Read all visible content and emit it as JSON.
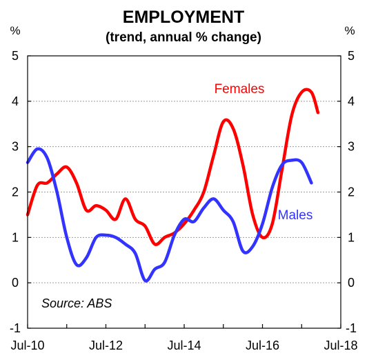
{
  "chart_data": {
    "type": "line",
    "title": "EMPLOYMENT",
    "subtitle": "(trend, annual % change)",
    "y_unit_left": "%",
    "y_unit_right": "%",
    "ylim": [
      -1,
      5
    ],
    "yticks": [
      "5",
      "4",
      "3",
      "2",
      "1",
      "0",
      "-1"
    ],
    "xlim": [
      "2010-07",
      "2018-07"
    ],
    "xticks": [
      {
        "label": "Jul-10",
        "date": "2010-07"
      },
      {
        "label": "Jul-12",
        "date": "2012-07"
      },
      {
        "label": "Jul-14",
        "date": "2014-07"
      },
      {
        "label": "Jul-16",
        "date": "2016-07"
      },
      {
        "label": "Jul-18",
        "date": "2018-07"
      }
    ],
    "grid": true,
    "annotation": "Source: ABS",
    "series": [
      {
        "name": "Females",
        "color": "#ff0000",
        "points": [
          [
            "2010-07",
            1.5
          ],
          [
            "2010-10",
            2.15
          ],
          [
            "2011-01",
            2.2
          ],
          [
            "2011-04",
            2.4
          ],
          [
            "2011-07",
            2.55
          ],
          [
            "2011-10",
            2.2
          ],
          [
            "2012-01",
            1.6
          ],
          [
            "2012-04",
            1.7
          ],
          [
            "2012-07",
            1.6
          ],
          [
            "2012-10",
            1.4
          ],
          [
            "2013-01",
            1.85
          ],
          [
            "2013-04",
            1.4
          ],
          [
            "2013-07",
            1.25
          ],
          [
            "2013-10",
            0.85
          ],
          [
            "2014-01",
            1.0
          ],
          [
            "2014-04",
            1.1
          ],
          [
            "2014-07",
            1.3
          ],
          [
            "2014-10",
            1.6
          ],
          [
            "2015-01",
            2.0
          ],
          [
            "2015-04",
            2.8
          ],
          [
            "2015-07",
            3.55
          ],
          [
            "2015-10",
            3.4
          ],
          [
            "2016-01",
            2.6
          ],
          [
            "2016-04",
            1.5
          ],
          [
            "2016-07",
            1.0
          ],
          [
            "2016-10",
            1.3
          ],
          [
            "2017-01",
            2.5
          ],
          [
            "2017-04",
            3.7
          ],
          [
            "2017-07",
            4.2
          ],
          [
            "2017-10",
            4.2
          ],
          [
            "2017-12",
            3.75
          ]
        ]
      },
      {
        "name": "Males",
        "color": "#3333ff",
        "points": [
          [
            "2010-07",
            2.65
          ],
          [
            "2010-10",
            2.95
          ],
          [
            "2011-01",
            2.75
          ],
          [
            "2011-04",
            2.0
          ],
          [
            "2011-07",
            1.0
          ],
          [
            "2011-10",
            0.4
          ],
          [
            "2012-01",
            0.55
          ],
          [
            "2012-04",
            1.0
          ],
          [
            "2012-07",
            1.05
          ],
          [
            "2012-10",
            1.0
          ],
          [
            "2013-01",
            0.85
          ],
          [
            "2013-04",
            0.65
          ],
          [
            "2013-07",
            0.05
          ],
          [
            "2013-10",
            0.3
          ],
          [
            "2014-01",
            0.45
          ],
          [
            "2014-04",
            1.05
          ],
          [
            "2014-07",
            1.4
          ],
          [
            "2014-10",
            1.35
          ],
          [
            "2015-01",
            1.65
          ],
          [
            "2015-04",
            1.85
          ],
          [
            "2015-07",
            1.6
          ],
          [
            "2015-10",
            1.35
          ],
          [
            "2016-01",
            0.7
          ],
          [
            "2016-04",
            0.8
          ],
          [
            "2016-07",
            1.3
          ],
          [
            "2016-10",
            2.1
          ],
          [
            "2017-01",
            2.6
          ],
          [
            "2017-04",
            2.7
          ],
          [
            "2017-07",
            2.65
          ],
          [
            "2017-10",
            2.2
          ]
        ]
      }
    ]
  }
}
